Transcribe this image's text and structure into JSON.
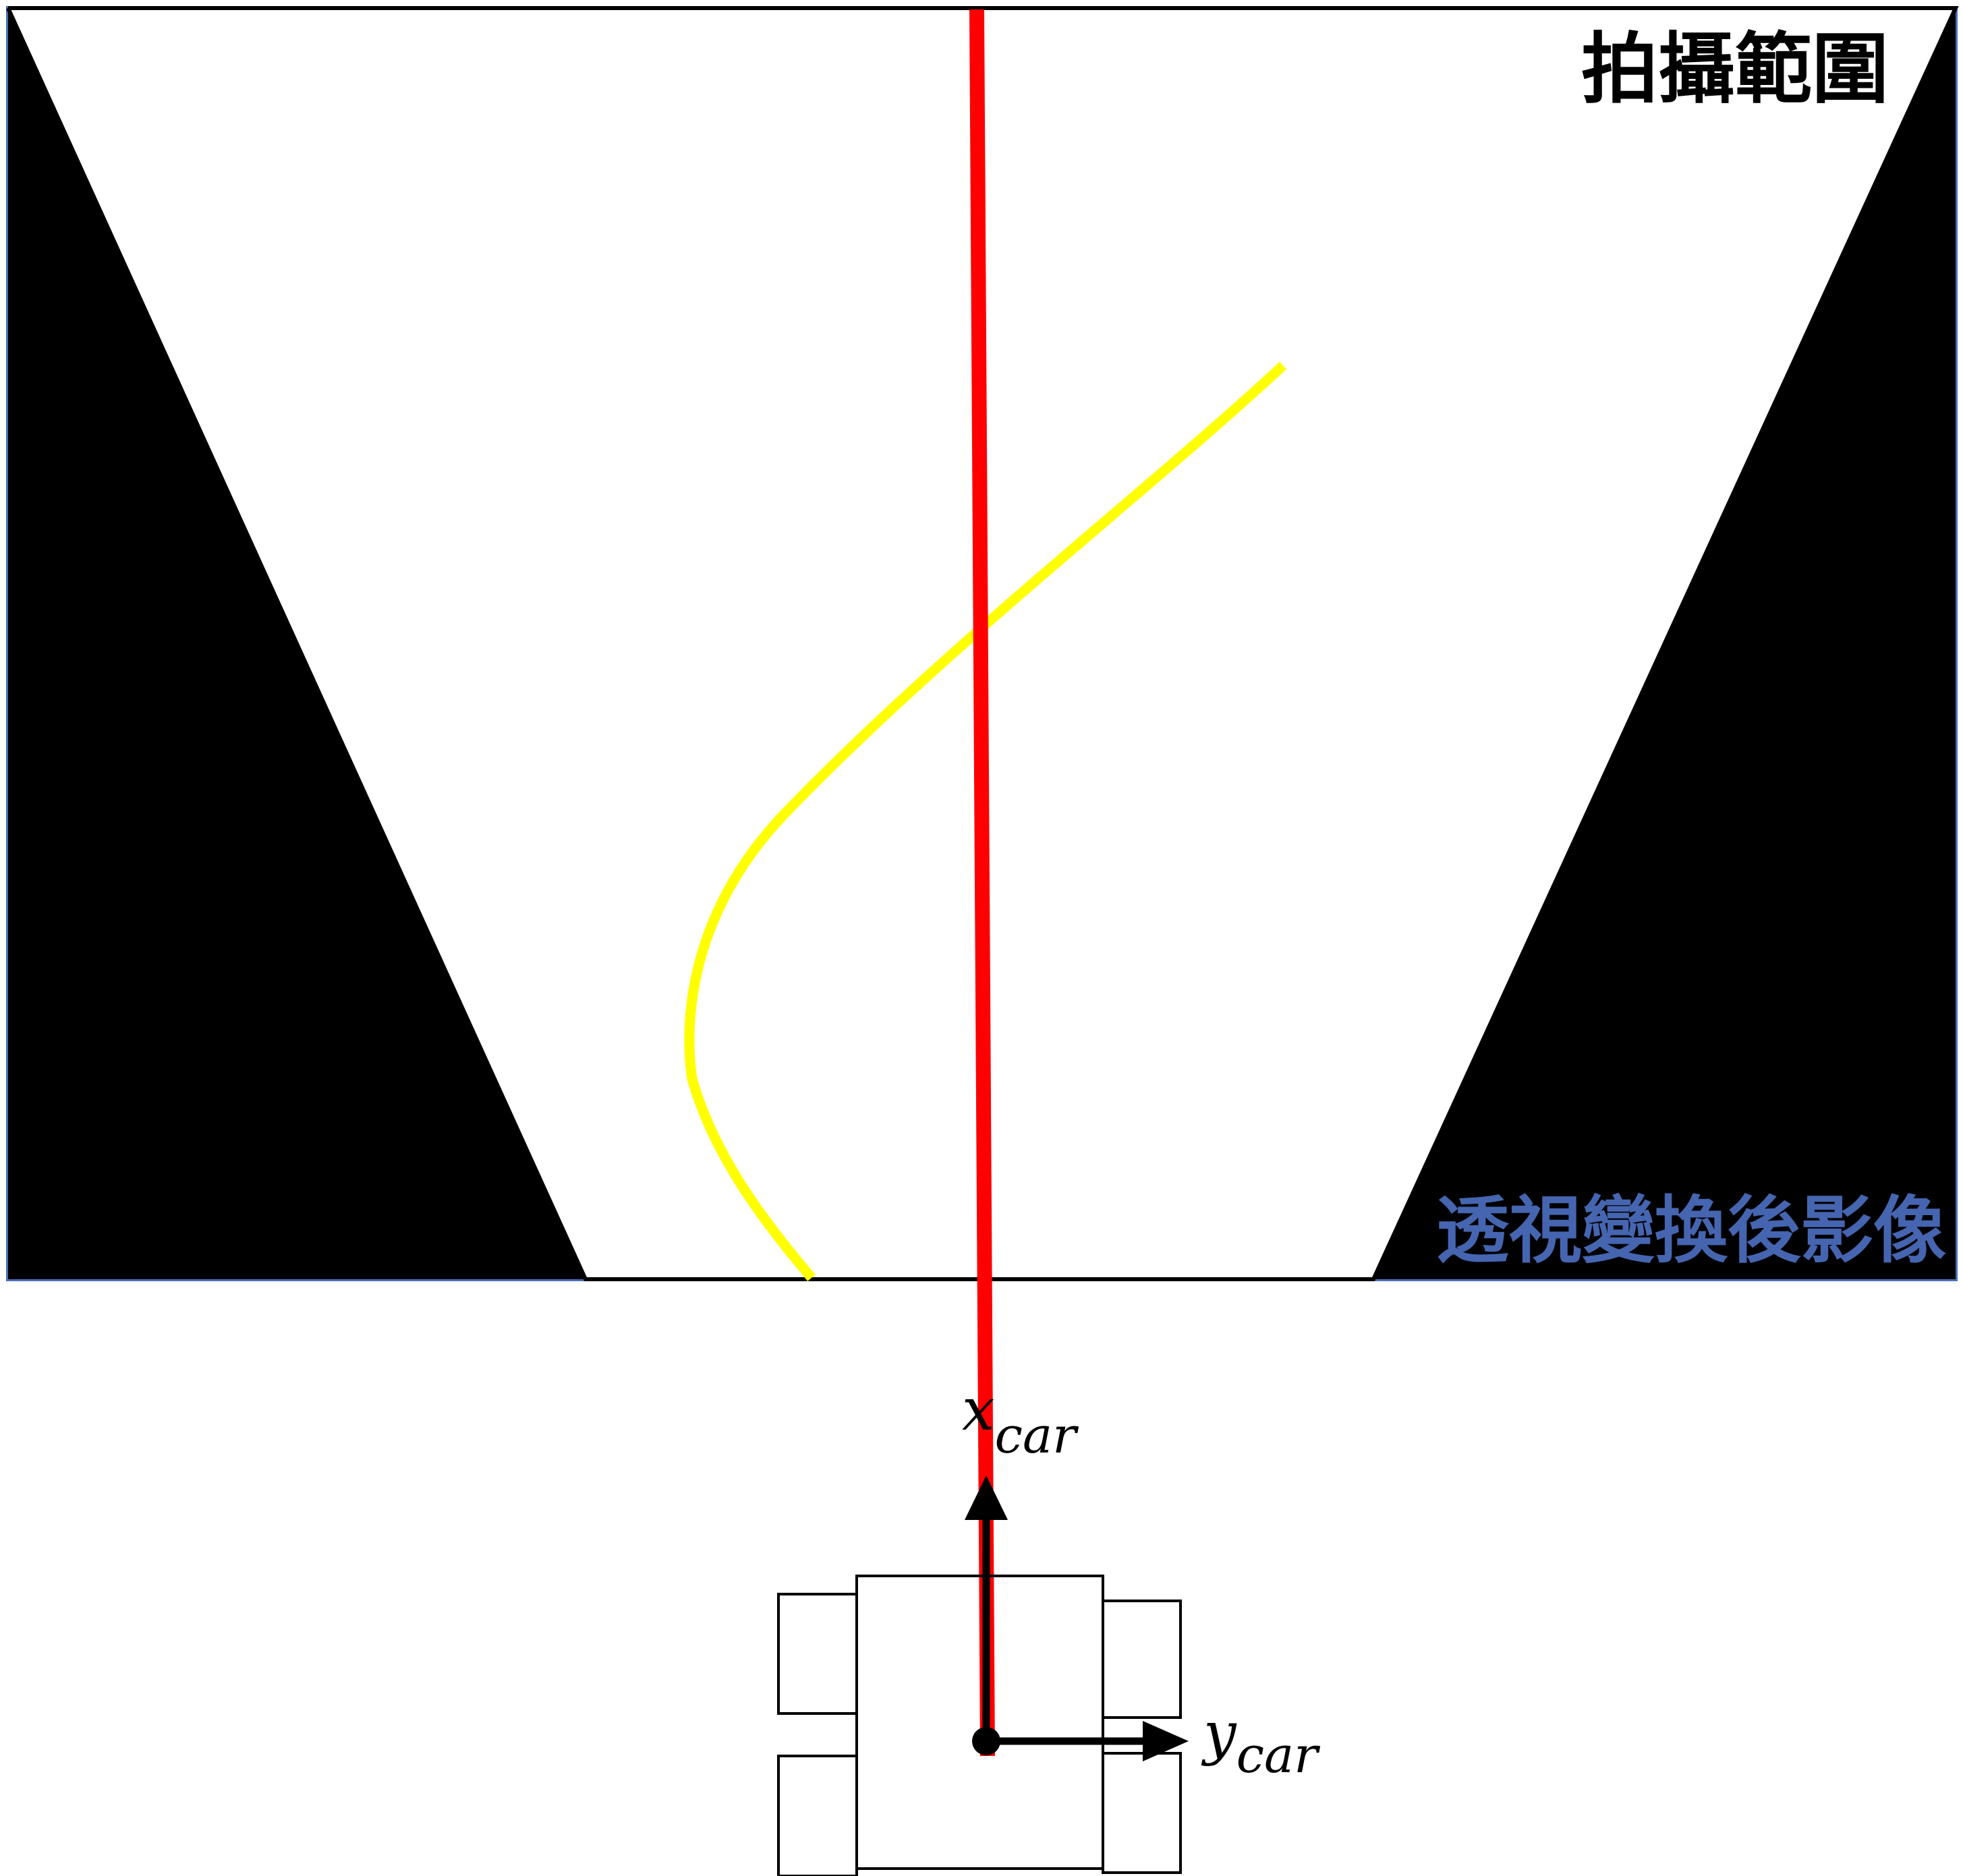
{
  "labels": {
    "capture_range": "拍攝範圍",
    "transformed_image": "透視變換後影像",
    "x_axis_main": "x",
    "x_axis_sub": "car",
    "y_axis_main": "y",
    "y_axis_sub": "car"
  },
  "colors": {
    "image_border": "#4a6fb5",
    "transformed_label": "#4565b0",
    "capture_label": "#000000",
    "reference_line": "#ff0000",
    "lane_curve": "#ffff00",
    "masked_region": "#000000",
    "capture_region": "#ffffff",
    "car_outline": "#000000"
  }
}
